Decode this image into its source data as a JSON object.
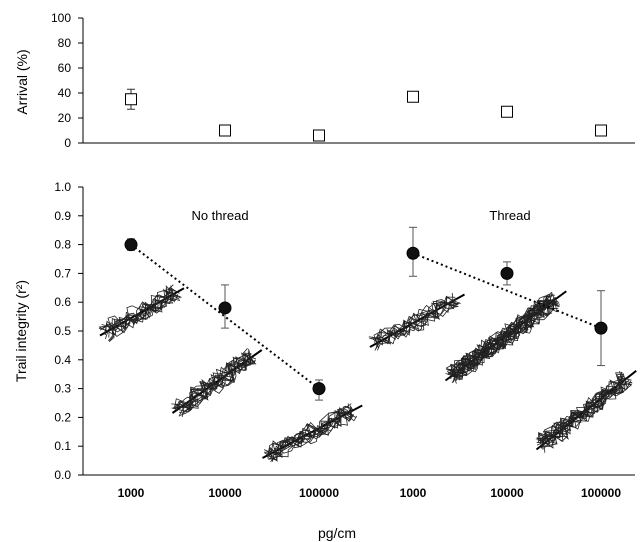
{
  "chart_data": [
    {
      "type": "scatter",
      "id": "arrival",
      "ylabel": "Arrival (%)",
      "ylim": [
        0,
        100
      ],
      "yticks": [
        "0",
        "20",
        "40",
        "60",
        "80",
        "100"
      ],
      "marker": "open-square",
      "points": [
        {
          "x": 1,
          "y": 35,
          "err_low": 27,
          "err_high": 43
        },
        {
          "x": 2,
          "y": 10,
          "err_low": 8,
          "err_high": 12
        },
        {
          "x": 3,
          "y": 6,
          "err_low": 5,
          "err_high": 7
        },
        {
          "x": 4,
          "y": 37,
          "err_low": 34,
          "err_high": 40
        },
        {
          "x": 5,
          "y": 25,
          "err_low": 23,
          "err_high": 26
        },
        {
          "x": 6,
          "y": 10,
          "err_low": 9,
          "err_high": 11
        }
      ]
    },
    {
      "type": "scatter",
      "id": "trail-integrity",
      "ylabel": "Trail integrity (r²)",
      "xlabel": "pg/cm",
      "ylim": [
        0,
        1
      ],
      "yticks": [
        "0.0",
        "0.1",
        "0.2",
        "0.3",
        "0.4",
        "0.5",
        "0.6",
        "0.7",
        "0.8",
        "0.9",
        "1.0"
      ],
      "categories": [
        "1000",
        "10000",
        "100000",
        "1000",
        "10000",
        "100000"
      ],
      "marker": "filled-circle",
      "groups": [
        {
          "label": "No thread",
          "points": [
            {
              "x": 1,
              "y": 0.8,
              "err_low": 0.78,
              "err_high": 0.82
            },
            {
              "x": 2,
              "y": 0.58,
              "err_low": 0.51,
              "err_high": 0.66
            },
            {
              "x": 3,
              "y": 0.3,
              "err_low": 0.26,
              "err_high": 0.33
            }
          ],
          "trend": {
            "x1": 1,
            "y1": 0.8,
            "x2": 3,
            "y2": 0.3
          }
        },
        {
          "label": "Thread",
          "points": [
            {
              "x": 4,
              "y": 0.77,
              "err_low": 0.69,
              "err_high": 0.86
            },
            {
              "x": 5,
              "y": 0.7,
              "err_low": 0.66,
              "err_high": 0.74
            },
            {
              "x": 6,
              "y": 0.51,
              "err_low": 0.38,
              "err_high": 0.64
            }
          ],
          "trend": {
            "x1": 4,
            "y1": 0.77,
            "x2": 6,
            "y2": 0.51
          }
        }
      ]
    }
  ]
}
